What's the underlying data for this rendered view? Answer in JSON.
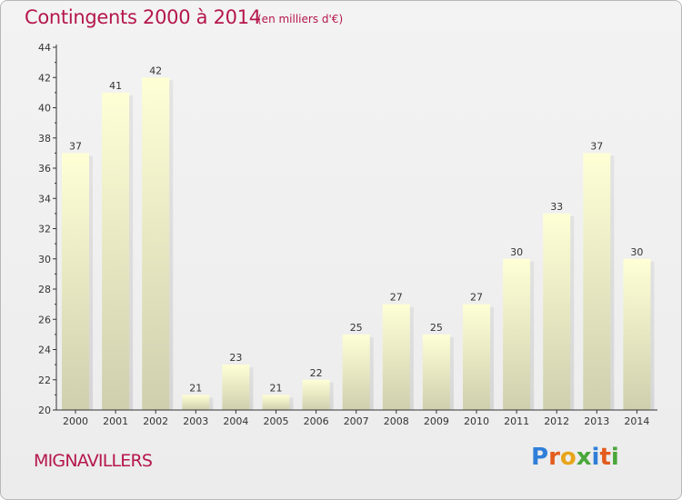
{
  "header": {
    "title": "Contingents 2000 à 2014",
    "unit": "(en milliers d'€)"
  },
  "footer": {
    "commune": "MIGNAVILLERS",
    "logo": {
      "letters": [
        "P",
        "r",
        "o",
        "x",
        "i",
        "t",
        "i"
      ],
      "colors": [
        "#2f7fd8",
        "#e35c1d",
        "#e8a519",
        "#4aa73a",
        "#2f7fd8",
        "#e35c1d",
        "#4aa73a"
      ]
    }
  },
  "colors": {
    "title": "#b5174c",
    "bar_top": "#ffffd6",
    "bar_bottom": "#cfcfae",
    "axis": "#333333"
  },
  "chart_data": {
    "type": "bar",
    "categories": [
      "2000",
      "2001",
      "2002",
      "2003",
      "2004",
      "2005",
      "2006",
      "2007",
      "2008",
      "2009",
      "2010",
      "2011",
      "2012",
      "2013",
      "2014"
    ],
    "values": [
      37,
      41,
      42,
      21,
      23,
      21,
      22,
      25,
      27,
      25,
      27,
      30,
      33,
      37,
      30
    ],
    "ylim": [
      20,
      44
    ],
    "yticks": [
      20,
      22,
      24,
      26,
      28,
      30,
      32,
      34,
      36,
      38,
      40,
      42,
      44
    ],
    "grid": false,
    "legend": "none"
  }
}
